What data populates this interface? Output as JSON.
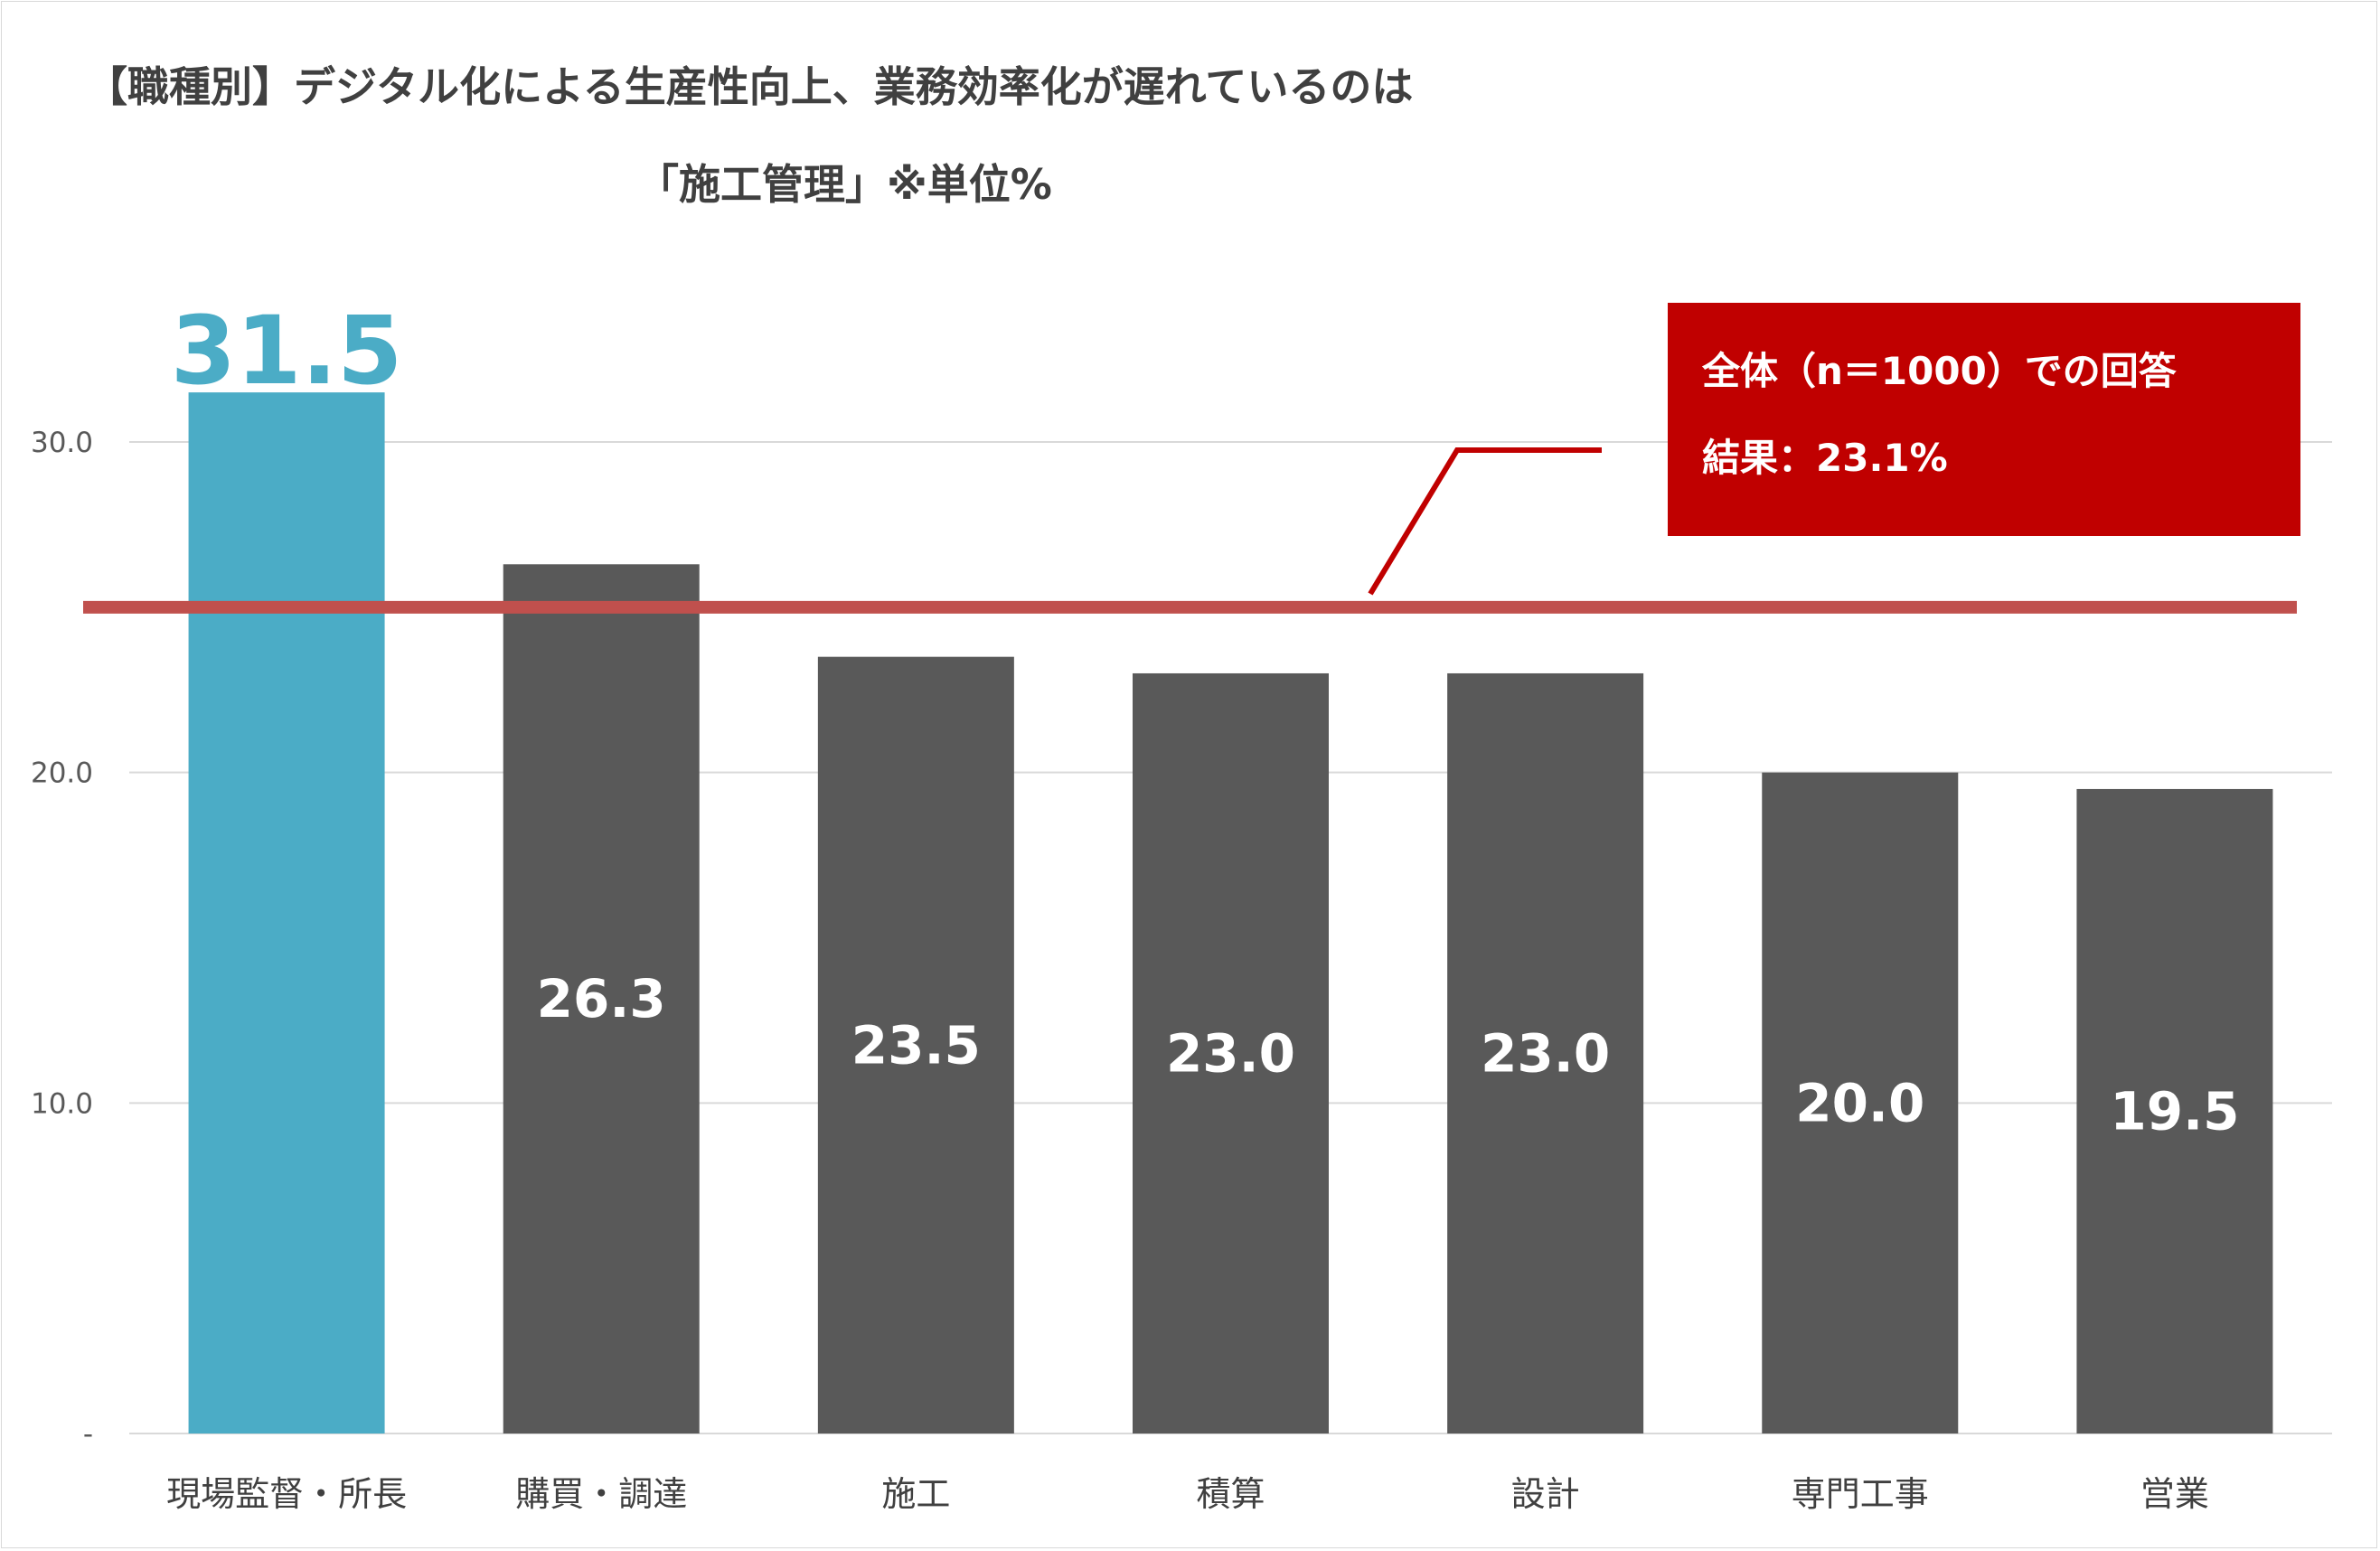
{
  "title": {
    "line1": "【職種別】デジタル化による生産性向上、業務効率化が遅れているのは",
    "line2": "「施工管理」※単位%"
  },
  "annotation": {
    "line1": "全体（n＝1000）での回答",
    "line2": "結果：23.1%"
  },
  "colors": {
    "highlight": "#4bacc6",
    "bar": "#595959",
    "reference_line": "#c0504d",
    "annotation_box": "#c00000",
    "grid": "#d9d9d9"
  },
  "chart_data": {
    "type": "bar",
    "categories": [
      "現場監督・所長",
      "購買・調達",
      "施工",
      "積算",
      "設計",
      "専門工事",
      "営業"
    ],
    "values": [
      31.5,
      26.3,
      23.5,
      23.0,
      23.0,
      20.0,
      19.5
    ],
    "value_labels": [
      "31.5",
      "26.3",
      "23.5",
      "23.0",
      "23.0",
      "20.0",
      "19.5"
    ],
    "highlight_index": 0,
    "ylim": [
      0,
      30
    ],
    "yticks": [
      0,
      10,
      20,
      30
    ],
    "ytick_labels": [
      "-",
      "10.0",
      "20.0",
      "30.0"
    ],
    "reference_value": 25,
    "grid": true,
    "legend": "none"
  }
}
